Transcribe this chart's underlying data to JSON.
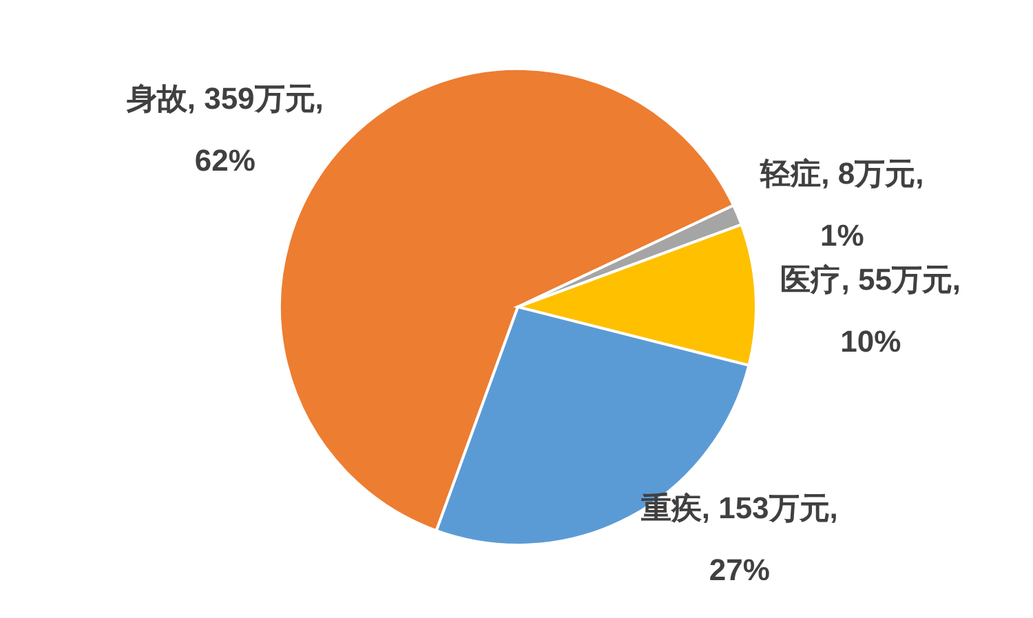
{
  "chart_data": {
    "type": "pie",
    "categories": [
      "身故",
      "轻症",
      "医疗",
      "重疾"
    ],
    "values": [
      359,
      8,
      55,
      153
    ],
    "colors": [
      "#ed7d31",
      "#a5a5a5",
      "#ffc000",
      "#5b9bd5"
    ],
    "value_labels": [
      "359万元, 62%",
      "8万元, 1%",
      "55万元, 10%",
      "153万元, 27%"
    ]
  }
}
